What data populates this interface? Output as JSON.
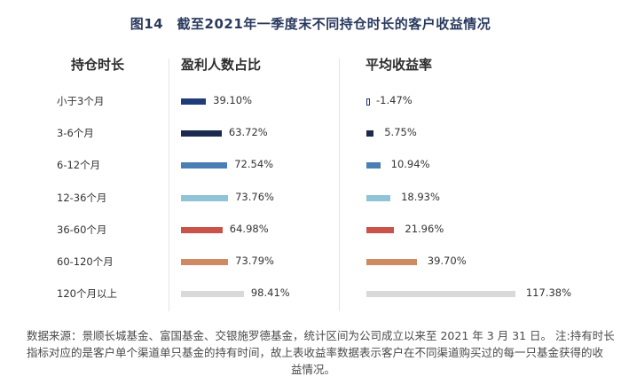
{
  "title": "图14　截至2021年一季度末不同持仓时长的客户收益情况",
  "footer": {
    "lines": [
      "数据来源：景顺长城基金、富国基金、交银施罗德基金，统计区间为公司成立以来至 2021 年 3 月 31 日。 注:持有时长",
      "指标对应的是客户单个渠道单只基金的持有时间，故上表收益率数据表示客户在不同渠道购买过的每一只基金获得的收",
      "益情况。"
    ]
  },
  "chart_data": {
    "type": "bar",
    "orientation": "horizontal",
    "columns": [
      "持仓时长",
      "盈利人数占比",
      "平均收益率"
    ],
    "categories": [
      "小于3个月",
      "3-6个月",
      "6-12个月",
      "12-36个月",
      "36-60个月",
      "60-120个月",
      "120个月以上"
    ],
    "colors": [
      "#1f3b7a",
      "#1b2a4e",
      "#4a7fb5",
      "#8fc3d6",
      "#c9534a",
      "#d08a63",
      "#d9d9d9"
    ],
    "series": [
      {
        "name": "盈利人数占比",
        "values": [
          39.1,
          63.72,
          72.54,
          73.76,
          64.98,
          73.79,
          98.41
        ],
        "labels": [
          "39.10%",
          "63.72%",
          "72.54%",
          "73.76%",
          "64.98%",
          "73.79%",
          "98.41%"
        ]
      },
      {
        "name": "平均收益率",
        "values": [
          -1.47,
          5.75,
          10.94,
          18.93,
          21.96,
          39.7,
          117.38
        ],
        "labels": [
          "-1.47%",
          "5.75%",
          "10.94%",
          "18.93%",
          "21.96%",
          "39.70%",
          "117.38%"
        ]
      }
    ]
  }
}
